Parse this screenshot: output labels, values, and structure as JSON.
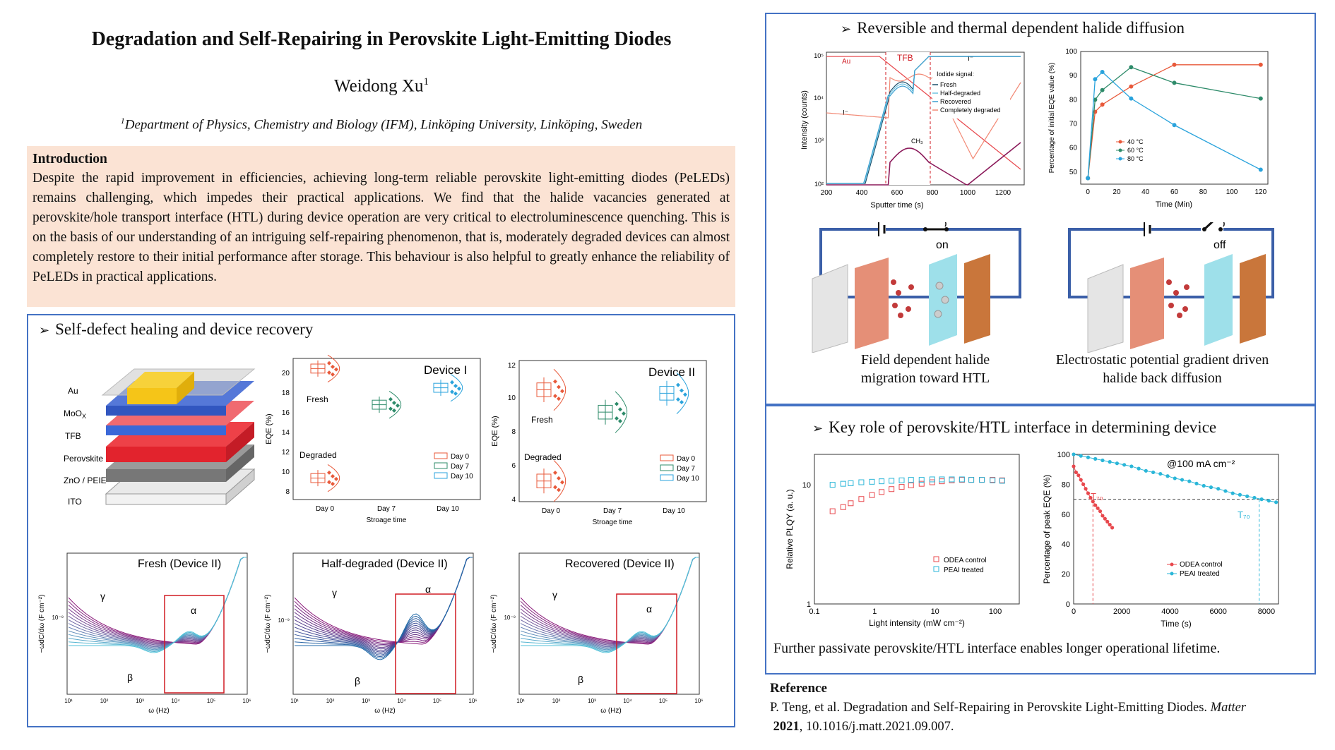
{
  "poster": {
    "title": "Degradation and Self-Repairing in Perovskite Light-Emitting Diodes",
    "author": "Weidong Xu",
    "author_sup": "1",
    "affil_sup": "1",
    "affiliation": "Department of Physics, Chemistry and Biology (IFM),  Linköping University, Linköping, Sweden"
  },
  "intro": {
    "heading": "Introduction",
    "body": "Despite the rapid improvement in efficiencies, achieving long-term reliable perovskite light-emitting diodes (PeLEDs) remains challenging, which impedes their practical applications. We find that the halide vacancies generated at perovskite/hole transport interface (HTL) during device operation are very critical to electroluminescence quenching. This is on the basis of our understanding of an intriguing self-repairing phenomenon, that is, moderately degraded devices can almost completely restore to their initial performance after storage. This behaviour is also helpful to greatly enhance the reliability of PeLEDs in practical applications."
  },
  "sections": {
    "self_healing": "Self-defect healing and device recovery",
    "halide": "Reversible and thermal dependent halide diffusion",
    "interface": "Key role of perovskite/HTL interface in determining device"
  },
  "device_stack": {
    "layers": [
      "Au",
      "MoOX",
      "TFB",
      "Perovskite",
      "ZnO / PEIE",
      "ITO"
    ],
    "colors": [
      "#f5cc30",
      "#4a6fd0",
      "#e8323c",
      "#d8283a",
      "#888888",
      "#dcdcdc"
    ]
  },
  "eqe_plots": [
    {
      "title": "Device I",
      "ylabel": "EQE (%)",
      "xlabel": "Stroage time",
      "x_ticks": [
        "Day 0",
        "Day 7",
        "Day 10"
      ],
      "y_ticks": [
        "8",
        "10",
        "12",
        "14",
        "16",
        "18",
        "20"
      ],
      "ylim": [
        8,
        20.5
      ],
      "label_fresh": "Fresh",
      "label_degraded": "Degraded",
      "legend": [
        "Day 0",
        "Day 7",
        "Day 10"
      ],
      "fresh_day0": 19.6,
      "degraded_day0": 9.9,
      "day7": 16.4,
      "day10": 17.9
    },
    {
      "title": "Device II",
      "ylabel": "EQE (%)",
      "xlabel": "Stroage time",
      "x_ticks": [
        "Day 0",
        "Day 7",
        "Day 10"
      ],
      "y_ticks": [
        "4",
        "6",
        "8",
        "10",
        "12"
      ],
      "ylim": [
        4,
        12.2
      ],
      "label_fresh": "Fresh",
      "label_degraded": "Degraded",
      "legend": [
        "Day 0",
        "Day 7",
        "Day 10"
      ],
      "fresh_day0": 10.5,
      "degraded_day0": 5.2,
      "day7": 9.2,
      "day10": 10.3
    }
  ],
  "colors": {
    "day0": "#e8593a",
    "day7": "#2e8b6a",
    "day10": "#2aa3dc",
    "panel_border": "#4472c4",
    "intro_bg": "#fbe3d4"
  },
  "capacitance_plots": [
    {
      "title": "Fresh (Device II)",
      "ylabel": "−ωdC/dω (F cm⁻²)",
      "xlabel": "ω (Hz)",
      "y_tick": "10⁻⁹",
      "x_ticks": [
        "10¹",
        "10²",
        "10³",
        "10⁴",
        "10⁵",
        "10⁶"
      ],
      "labels": [
        "γ",
        "α",
        "β"
      ]
    },
    {
      "title": "Half-degraded (Device II)",
      "ylabel": "−ωdC/dω (F cm⁻²)",
      "xlabel": "ω (Hz)",
      "y_tick": "10⁻⁹",
      "x_ticks": [
        "10¹",
        "10²",
        "10³",
        "10⁴",
        "10⁵",
        "10⁶"
      ],
      "labels": [
        "γ",
        "α",
        "β"
      ]
    },
    {
      "title": "Recovered (Device II)",
      "ylabel": "−ωdC/dω (F cm⁻²)",
      "xlabel": "ω (Hz)",
      "y_tick": "10⁻⁹",
      "x_ticks": [
        "10¹",
        "10²",
        "10³",
        "10⁴",
        "10⁵",
        "10⁶"
      ],
      "labels": [
        "γ",
        "α",
        "β"
      ]
    }
  ],
  "tof_sims": {
    "ylabel": "Intensity (counts)",
    "xlabel": "Sputter time (s)",
    "x_ticks": [
      "200",
      "400",
      "600",
      "800",
      "1000",
      "1200"
    ],
    "y_ticks": [
      "10⁵",
      "10⁴",
      "10³",
      "10²"
    ],
    "labels": {
      "au": "Au",
      "tfb": "TFB",
      "iodide": "I⁻",
      "iodide2": "I⁻",
      "ch3": "CH₃"
    },
    "legend_title": "Iodide signal:",
    "legend": [
      "Fresh",
      "Half-degraded",
      "Recovered",
      "Completely degraded"
    ]
  },
  "temp_plot": {
    "ylabel": "Percentage of initial EQE value (%)",
    "xlabel": "Time (Min)",
    "x_ticks": [
      "0",
      "20",
      "40",
      "60",
      "80",
      "100",
      "120"
    ],
    "y_ticks": [
      "50",
      "60",
      "70",
      "80",
      "90",
      "100"
    ],
    "legend": [
      "40 °C",
      "60 °C",
      "80 °C"
    ],
    "chart_data": {
      "type": "line",
      "x": [
        0,
        5,
        10,
        30,
        60,
        120
      ],
      "xlim": [
        -5,
        125
      ],
      "ylim": [
        45,
        100
      ],
      "series": [
        {
          "name": "40 °C",
          "color": "#e8593a",
          "values": [
            47.5,
            75,
            78,
            85.5,
            94.5,
            94.5
          ]
        },
        {
          "name": "60 °C",
          "color": "#2e8b6a",
          "values": [
            47.5,
            80,
            84,
            93.5,
            87,
            80.5
          ]
        },
        {
          "name": "80 °C",
          "color": "#2aa3dc",
          "values": [
            47.5,
            88.5,
            91.5,
            80.5,
            69.5,
            51
          ]
        }
      ]
    }
  },
  "circuits": [
    {
      "state": "on",
      "caption": "Field dependent halide migration toward HTL"
    },
    {
      "state": "off",
      "caption": "Electrostatic potential gradient driven halide back diffusion"
    }
  ],
  "plqy_plot": {
    "ylabel": "Relative PLQY (a. u.)",
    "xlabel": "Light intensity (mW cm⁻²)",
    "x_ticks": [
      "0.1",
      "1",
      "10",
      "100"
    ],
    "y_ticks": [
      "10",
      "1"
    ],
    "legend": [
      "ODEA control",
      "PEAI treated"
    ],
    "chart_data": {
      "type": "scatter",
      "xlim": [
        0.1,
        250
      ],
      "ylim": [
        1,
        18
      ],
      "log_x": true,
      "log_y": true,
      "series": [
        {
          "name": "ODEA control",
          "color": "#e8484d",
          "x": [
            0.2,
            0.3,
            0.4,
            0.6,
            0.9,
            1.3,
            1.9,
            2.8,
            4,
            6,
            9,
            13,
            19,
            28,
            40,
            60,
            90,
            130
          ],
          "y": [
            6.0,
            6.5,
            7.0,
            7.6,
            8.2,
            8.7,
            9.2,
            9.6,
            9.9,
            10.2,
            10.5,
            10.7,
            10.9,
            11.0,
            11.0,
            11.0,
            11.0,
            10.9
          ]
        },
        {
          "name": "PEAI treated",
          "color": "#2ab6d8",
          "x": [
            0.2,
            0.3,
            0.4,
            0.6,
            0.9,
            1.3,
            1.9,
            2.8,
            4,
            6,
            9,
            13,
            19,
            28,
            40,
            60,
            90,
            130
          ],
          "y": [
            10.0,
            10.2,
            10.3,
            10.5,
            10.6,
            10.7,
            10.8,
            10.9,
            11.0,
            11.0,
            11.1,
            11.1,
            11.1,
            11.1,
            11.0,
            11.0,
            10.9,
            10.8
          ]
        }
      ]
    }
  },
  "lifetime_plot": {
    "ylabel": "Percentage of peak EQE (%)",
    "xlabel": "Time (s)",
    "annotation": "@100 mA cm⁻²",
    "t70_a": "T₇₀",
    "t70_b": "T₇₀",
    "x_ticks": [
      "0",
      "2000",
      "4000",
      "6000",
      "8000"
    ],
    "y_ticks": [
      "0",
      "20",
      "40",
      "60",
      "80",
      "100"
    ],
    "legend": [
      "ODEA control",
      "PEAI treated"
    ],
    "chart_data": {
      "type": "line",
      "xlim": [
        0,
        8500
      ],
      "ylim": [
        0,
        100
      ],
      "series": [
        {
          "name": "ODEA control",
          "color": "#e8484d",
          "x": [
            0,
            100,
            200,
            300,
            400,
            500,
            600,
            700,
            800,
            900,
            1000,
            1100,
            1200,
            1300,
            1400,
            1500,
            1600
          ],
          "y": [
            92,
            88,
            86,
            83,
            80,
            77,
            74,
            71,
            68.5,
            66,
            64,
            62,
            59,
            57,
            55,
            53,
            51
          ]
        },
        {
          "name": "PEAI treated",
          "color": "#2ab6d8",
          "x": [
            0,
            300,
            600,
            900,
            1200,
            1500,
            1800,
            2100,
            2400,
            2700,
            3000,
            3300,
            3600,
            3900,
            4200,
            4500,
            4800,
            5100,
            5400,
            5700,
            6000,
            6300,
            6600,
            6900,
            7200,
            7500,
            7800,
            8100,
            8400
          ],
          "y": [
            100,
            99,
            98,
            97,
            96,
            95,
            94,
            93,
            92,
            90.5,
            89,
            88,
            87,
            85.5,
            84,
            83,
            82,
            80.5,
            79,
            78,
            77,
            75.5,
            74,
            73,
            72,
            71,
            70,
            69,
            68
          ]
        }
      ],
      "t70_control": 800,
      "t70_treated": 7700
    }
  },
  "conclusion": "Further passivate perovskite/HTL interface enables longer operational lifetime.",
  "reference": {
    "heading": "Reference",
    "text_a": "P. Teng, et al. Degradation and Self-Repairing in Perovskite Light-Emitting Diodes.",
    "journal": "Matter",
    "year": "2021",
    "text_b": ", 10.1016/j.matt.2021.09.007."
  }
}
